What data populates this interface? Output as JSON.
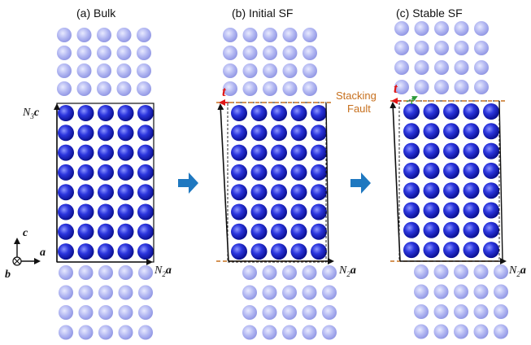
{
  "panels": [
    {
      "id": "a",
      "title": "(a)  Bulk"
    },
    {
      "id": "b",
      "title": "(b)  Initial SF"
    },
    {
      "id": "c",
      "title": "(c)  Stable SF"
    }
  ],
  "labels": {
    "n3": "N",
    "n3_sub": "3",
    "c_vec": "c",
    "n2": "N",
    "n2_sub": "2",
    "a_vec": "a",
    "t_vec": "t",
    "t_prime": "t'",
    "stacking_fault_line1": "Stacking",
    "stacking_fault_line2": "Fault"
  },
  "axes_triad": {
    "c": "c",
    "a": "a",
    "b": "b",
    "b_symbol": "into-page-cross-icon"
  },
  "colors": {
    "bulk_atom": "#1b22cc",
    "ghost_atom": "#a9aef0",
    "stacking_fault_line": "#c7701e",
    "transition_arrow": "#1f78c0",
    "t_vector": "#e01616",
    "t_prime_vector": "#2e9b3a"
  }
}
